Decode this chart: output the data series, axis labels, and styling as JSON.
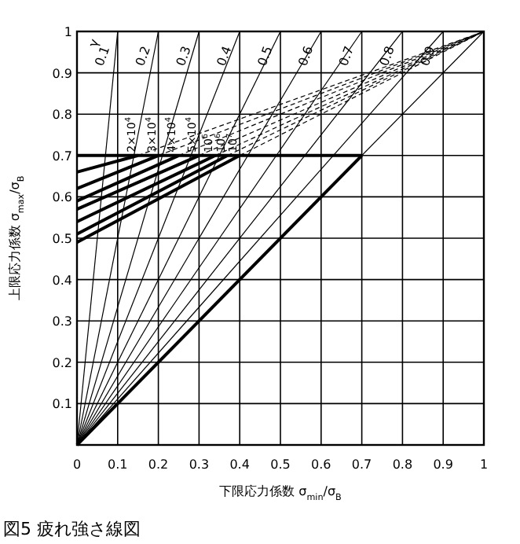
{
  "chart_data": {
    "type": "line",
    "title": "図5 疲れ強さ線図",
    "xlabel": "下限応力係数 σ$_{min}$/σ$_{B}$",
    "ylabel": "上限応力係数 σ$_{max}$/σ$_{B}$",
    "xlim": [
      0,
      1
    ],
    "ylim": [
      0,
      1
    ],
    "xticks": [
      0,
      0.1,
      0.2,
      0.3,
      0.4,
      0.5,
      0.6,
      0.7,
      0.8,
      0.9,
      1.0
    ],
    "yticks": [
      {
        "value": 0,
        "label": null
      },
      0.1,
      0.2,
      0.3,
      0.4,
      0.5,
      0.6,
      0.7,
      0.8,
      0.9,
      1.0
    ],
    "grid": true,
    "marker": "none",
    "annotations": [
      "γ",
      {
        "text": "0.1",
        "x": 0.08,
        "y": 0.96
      },
      {
        "text": "0.2",
        "x": 0.18,
        "y": 0.96
      },
      {
        "text": "0.3",
        "x": 0.28,
        "y": 0.96
      },
      {
        "text": "0.4",
        "x": 0.38,
        "y": 0.96
      },
      {
        "text": "0.5",
        "x": 0.48,
        "y": 0.96
      },
      {
        "text": "0.6",
        "x": 0.58,
        "y": 0.96
      },
      {
        "text": "0.7",
        "x": 0.68,
        "y": 0.96
      },
      {
        "text": "0.8",
        "x": 0.78,
        "y": 0.96
      },
      {
        "text": "0.9",
        "x": 0.88,
        "y": 0.96
      }
    ],
    "series": [
      {
        "color": "#000000",
        "x": [
          0,
          0.1
        ],
        "values": [
          0,
          1
        ]
      },
      {
        "color": "#000000",
        "x": [
          0,
          0.2
        ],
        "values": [
          0,
          1
        ]
      },
      {
        "color": "#000000",
        "x": [
          0,
          0.3
        ],
        "values": [
          0,
          1
        ]
      },
      {
        "color": "#000000",
        "x": [
          0,
          0.4
        ],
        "values": [
          0,
          1
        ]
      },
      {
        "color": "#000000",
        "x": [
          0,
          0.5
        ],
        "values": [
          0,
          1
        ]
      },
      {
        "color": "#000000",
        "x": [
          0,
          0.6
        ],
        "values": [
          0,
          1
        ]
      },
      {
        "color": "#000000",
        "x": [
          0,
          0.7
        ],
        "values": [
          0,
          1
        ]
      },
      {
        "color": "#000000",
        "x": [
          0,
          0.8
        ],
        "values": [
          0,
          1
        ]
      },
      {
        "color": "#000000",
        "x": [
          0,
          0.9
        ],
        "values": [
          0,
          1
        ]
      },
      {
        "color": "#000000",
        "x": [
          0,
          1
        ],
        "values": [
          0,
          1
        ]
      },
      {
        "color": "#000000",
        "x": [
          0,
          0.7
        ],
        "values": [
          0,
          0.7
        ]
      },
      {
        "color": "#000000",
        "x": [
          0,
          0.7
        ],
        "values": [
          0.7,
          0.7
        ]
      },
      {
        "name": "2×10$^{4}$",
        "color": "#000000",
        "x": [
          0,
          0.15
        ],
        "values": [
          0.66,
          0.7
        ]
      },
      {
        "name": "3×10$^{4}$",
        "color": "#000000",
        "x": [
          0,
          0.2
        ],
        "values": [
          0.62,
          0.7
        ]
      },
      {
        "name": "4×10$^{4}$",
        "color": "#000000",
        "x": [
          0,
          0.25
        ],
        "values": [
          0.59,
          0.7
        ]
      },
      {
        "name": "5×10$^{4}$",
        "color": "#000000",
        "x": [
          0,
          0.3
        ],
        "values": [
          0.57,
          0.7
        ]
      },
      {
        "name": "10$^{5}$",
        "color": "#000000",
        "x": [
          0,
          0.34
        ],
        "values": [
          0.54,
          0.7
        ]
      },
      {
        "name": "10$^{6}$",
        "color": "#000000",
        "x": [
          0,
          0.37
        ],
        "values": [
          0.51,
          0.7
        ]
      },
      {
        "name": "10$^{7}$",
        "color": "#000000",
        "x": [
          0,
          0.4
        ],
        "values": [
          0.49,
          0.7
        ]
      },
      {
        "color": "#000000",
        "line_style": "dashed",
        "x": [
          0.15,
          1
        ],
        "values": [
          0.7,
          1
        ]
      },
      {
        "color": "#000000",
        "line_style": "dashed",
        "x": [
          0.2,
          1
        ],
        "values": [
          0.7,
          1
        ]
      },
      {
        "color": "#000000",
        "line_style": "dashed",
        "x": [
          0.25,
          1
        ],
        "values": [
          0.7,
          1
        ]
      },
      {
        "color": "#000000",
        "line_style": "dashed",
        "x": [
          0.3,
          1
        ],
        "values": [
          0.7,
          1
        ]
      },
      {
        "color": "#000000",
        "line_style": "dashed",
        "x": [
          0.34,
          1
        ],
        "values": [
          0.7,
          1
        ]
      },
      {
        "color": "#000000",
        "line_style": "dashed",
        "x": [
          0.37,
          1
        ],
        "values": [
          0.7,
          1
        ]
      },
      {
        "color": "#000000",
        "line_style": "dashed",
        "x": [
          0.4,
          1
        ],
        "values": [
          0.7,
          1
        ]
      }
    ]
  }
}
